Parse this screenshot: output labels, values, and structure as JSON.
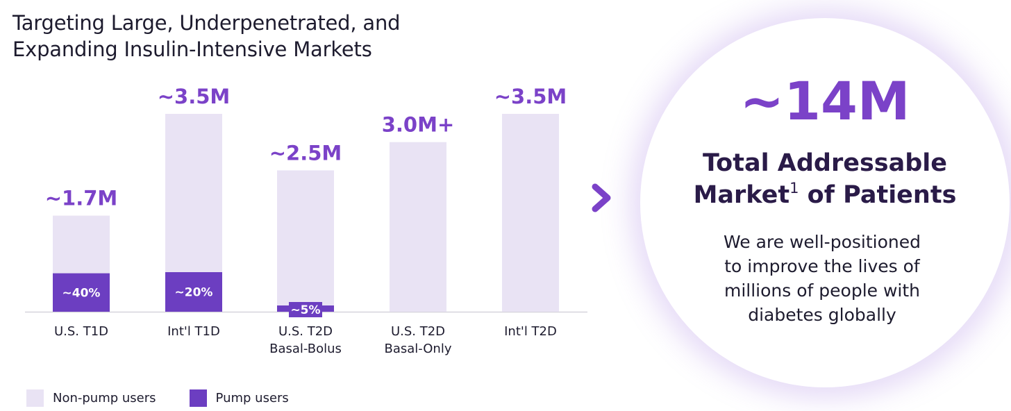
{
  "title": {
    "line1": "Targeting Large, Underpenetrated, and",
    "line2": "Expanding Insulin-Intensive Markets"
  },
  "colors": {
    "non_pump": "#e9e3f4",
    "pump": "#6c3ec1",
    "accent": "#7b42c8",
    "dark_text": "#2a1b48"
  },
  "chart_data": {
    "type": "bar",
    "stacked": true,
    "categories": [
      [
        "U.S. T1D"
      ],
      [
        "Int'l T1D"
      ],
      [
        "U.S. T2D",
        "Basal-Bolus"
      ],
      [
        "U.S. T2D",
        "Basal-Only"
      ],
      [
        "Int'l T2D"
      ]
    ],
    "total_values": [
      1.7,
      3.5,
      2.5,
      3.0,
      3.5
    ],
    "total_labels": [
      "~1.7M",
      "~3.5M",
      "~2.5M",
      "3.0M+",
      "~3.5M"
    ],
    "pump_share_percent": [
      40,
      20,
      5,
      null,
      null
    ],
    "pump_share_labels": [
      "~40%",
      "~20%",
      "~5%",
      "",
      ""
    ],
    "series": [
      {
        "name": "Non-pump users",
        "color": "#e9e3f4"
      },
      {
        "name": "Pump users",
        "color": "#6c3ec1"
      }
    ],
    "ylim": [
      0,
      3.5
    ],
    "unit": "M",
    "grid": false,
    "legend_position": "bottom-left"
  },
  "legend": {
    "non_pump_label": "Non-pump users",
    "pump_label": "Pump users"
  },
  "summary": {
    "big_number": "~14M",
    "tam_line1": "Total Addressable",
    "tam_line2_prefix": "Market",
    "tam_superscript": "1",
    "tam_line2_suffix": " of Patients",
    "body_lines": [
      "We are well-positioned",
      "to improve the lives of",
      "millions of people with",
      "diabetes globally"
    ]
  },
  "icons": {
    "arrow": "chevron-right-icon"
  }
}
